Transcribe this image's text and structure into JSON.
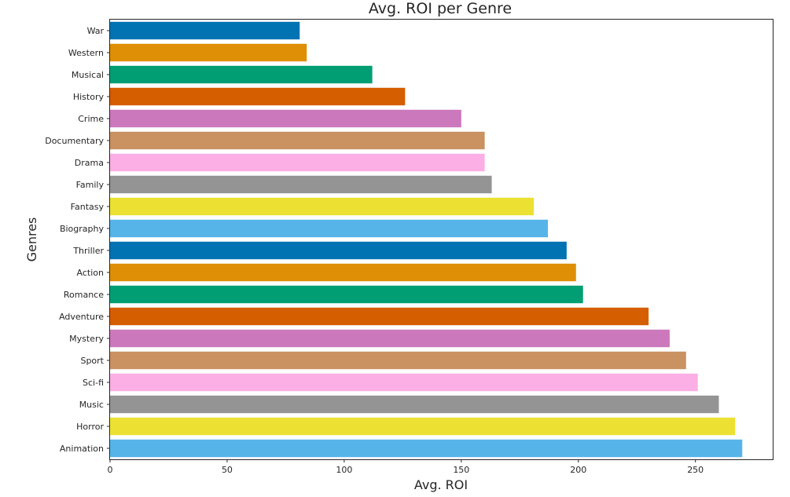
{
  "chart_data": {
    "type": "bar",
    "orientation": "horizontal",
    "title": "Avg. ROI per Genre",
    "xlabel": "Avg. ROI",
    "ylabel": "Genres",
    "xlim": [
      0,
      283
    ],
    "x_ticks": [
      0,
      50,
      100,
      150,
      200,
      250
    ],
    "grid": false,
    "categories": [
      "War",
      "Western",
      "Musical",
      "History",
      "Crime",
      "Documentary",
      "Drama",
      "Family",
      "Fantasy",
      "Biography",
      "Thriller",
      "Action",
      "Romance",
      "Adventure",
      "Mystery",
      "Sport",
      "Sci-fi",
      "Music",
      "Horror",
      "Animation"
    ],
    "values": [
      81,
      84,
      112,
      126,
      150,
      160,
      160,
      163,
      181,
      187,
      195,
      199,
      202,
      230,
      239,
      246,
      251,
      260,
      267,
      270
    ],
    "colors": [
      "#0173b2",
      "#de8f05",
      "#029e73",
      "#d55e00",
      "#cc78bc",
      "#ca9161",
      "#fbafe4",
      "#949494",
      "#ece133",
      "#56b4e9",
      "#0173b2",
      "#de8f05",
      "#029e73",
      "#d55e00",
      "#cc78bc",
      "#ca9161",
      "#fbafe4",
      "#949494",
      "#ece133",
      "#56b4e9"
    ]
  }
}
